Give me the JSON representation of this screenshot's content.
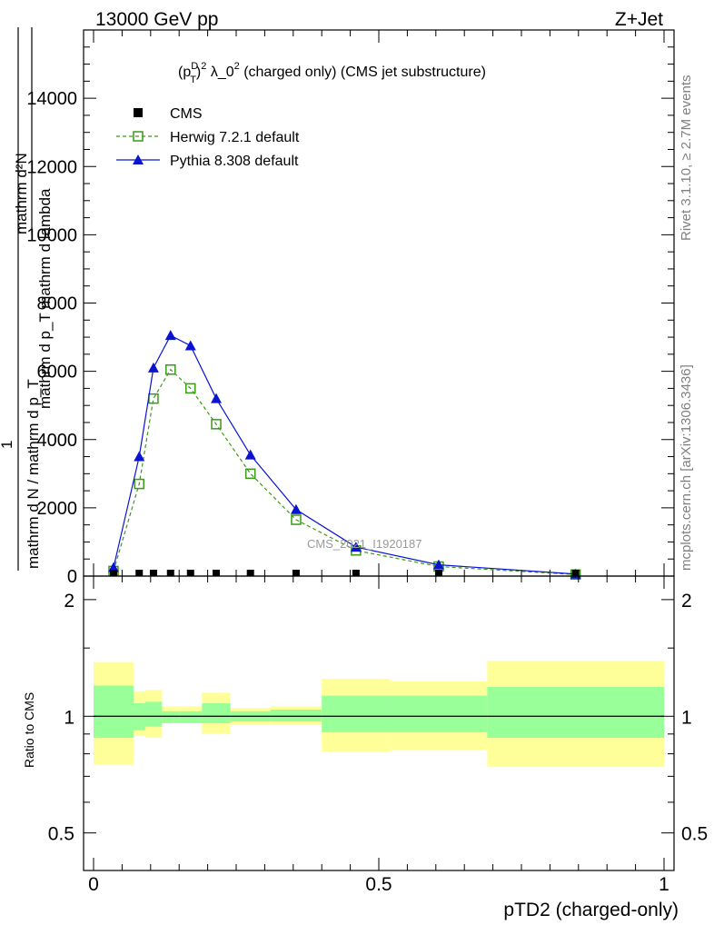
{
  "header": {
    "energy_label": "13000 GeV pp",
    "process_label": "Z+Jet"
  },
  "side_text": {
    "rivet": "Rivet 3.1.10, ≥ 2.7M events",
    "mcplots": "mcplots.cern.ch [arXiv:1306.3436]"
  },
  "watermark": "CMS_2021_I1920187",
  "colors": {
    "cms": "#000000",
    "herwig": "#3a9a18",
    "pythia": "#0a14d0",
    "band_inner": "#99ff99",
    "band_outer": "#ffff99"
  },
  "chart_data": [
    {
      "type": "line",
      "title": "(p_T^D)^2 λ_0^2 (charged only) (CMS jet substructure)",
      "title_parts": {
        "p": "(p",
        "sup_d": "D",
        "sub_t": "T",
        "close": ")",
        "sup_2": "2",
        "lambda": " λ_0",
        "sup_2b": "2",
        "rest": " (charged only) (CMS jet substructure)"
      },
      "ylabel_top": "mathrm d²N",
      "ylabel_bottom": "mathrm d p_T mathrm d lambda",
      "ylabel_outer_num": "1",
      "ylabel_outer_den": "mathrm d N / mathrm d p_T",
      "xlim": [
        0,
        1
      ],
      "ylim": [
        0,
        16000
      ],
      "y_ticks": [
        0,
        2000,
        4000,
        6000,
        8000,
        10000,
        12000,
        14000
      ],
      "y_tick_labels": [
        "0",
        "2000",
        "4000",
        "6000",
        "8000",
        "10000",
        "12000",
        "14000"
      ],
      "legend": [
        {
          "name": "CMS",
          "marker": "square-filled"
        },
        {
          "name": "Herwig 7.2.1 default",
          "marker": "square-open",
          "style": "dashed"
        },
        {
          "name": "Pythia 8.308 default",
          "marker": "triangle-filled",
          "style": "solid"
        }
      ],
      "legend_position": "top-left",
      "series": [
        {
          "name": "CMS",
          "x": [
            0.035,
            0.08,
            0.105,
            0.135,
            0.17,
            0.215,
            0.275,
            0.355,
            0.46,
            0.605,
            0.845
          ],
          "y": [
            0,
            0,
            0,
            0,
            0,
            0,
            0,
            0,
            0,
            0,
            0
          ]
        },
        {
          "name": "Herwig 7.2.1 default",
          "x": [
            0.035,
            0.08,
            0.105,
            0.135,
            0.17,
            0.215,
            0.275,
            0.355,
            0.46,
            0.605,
            0.845
          ],
          "y": [
            150,
            2700,
            5200,
            6050,
            5500,
            4450,
            3000,
            1650,
            750,
            280,
            45
          ]
        },
        {
          "name": "Pythia 8.308 default",
          "x": [
            0.035,
            0.08,
            0.105,
            0.135,
            0.17,
            0.215,
            0.275,
            0.355,
            0.46,
            0.605,
            0.845
          ],
          "y": [
            250,
            3500,
            6100,
            7050,
            6750,
            5200,
            3550,
            1950,
            850,
            330,
            60
          ]
        }
      ]
    },
    {
      "type": "area",
      "ylabel": "Ratio to CMS",
      "xlabel": "pTD2 (charged-only)",
      "xlim": [
        0,
        1
      ],
      "ylim": [
        0.4,
        2.3
      ],
      "x_ticks": [
        0,
        0.5,
        1
      ],
      "x_tick_labels": [
        "0",
        "0.5",
        "1"
      ],
      "y_ticks": [
        0.5,
        1,
        2
      ],
      "y_tick_labels": [
        "0.5",
        "1",
        "2"
      ],
      "reference_line": 1,
      "bins": [
        {
          "x0": 0.0,
          "x1": 0.07,
          "inner": [
            0.88,
            1.2
          ],
          "outer": [
            0.75,
            1.38
          ]
        },
        {
          "x0": 0.07,
          "x1": 0.09,
          "inner": [
            0.92,
            1.08
          ],
          "outer": [
            0.89,
            1.16
          ]
        },
        {
          "x0": 0.09,
          "x1": 0.12,
          "inner": [
            0.94,
            1.09
          ],
          "outer": [
            0.88,
            1.17
          ]
        },
        {
          "x0": 0.12,
          "x1": 0.15,
          "inner": [
            0.96,
            1.03
          ],
          "outer": [
            0.96,
            1.06
          ]
        },
        {
          "x0": 0.15,
          "x1": 0.19,
          "inner": [
            0.96,
            1.03
          ],
          "outer": [
            0.96,
            1.06
          ]
        },
        {
          "x0": 0.19,
          "x1": 0.24,
          "inner": [
            0.96,
            1.08
          ],
          "outer": [
            0.9,
            1.15
          ]
        },
        {
          "x0": 0.24,
          "x1": 0.31,
          "inner": [
            0.97,
            1.03
          ],
          "outer": [
            0.95,
            1.05
          ]
        },
        {
          "x0": 0.31,
          "x1": 0.4,
          "inner": [
            0.97,
            1.04
          ],
          "outer": [
            0.95,
            1.06
          ]
        },
        {
          "x0": 0.4,
          "x1": 0.52,
          "inner": [
            0.91,
            1.13
          ],
          "outer": [
            0.81,
            1.25
          ]
        },
        {
          "x0": 0.52,
          "x1": 0.69,
          "inner": [
            0.91,
            1.13
          ],
          "outer": [
            0.82,
            1.23
          ]
        },
        {
          "x0": 0.69,
          "x1": 1.0,
          "inner": [
            0.88,
            1.19
          ],
          "outer": [
            0.74,
            1.39
          ]
        }
      ]
    }
  ]
}
